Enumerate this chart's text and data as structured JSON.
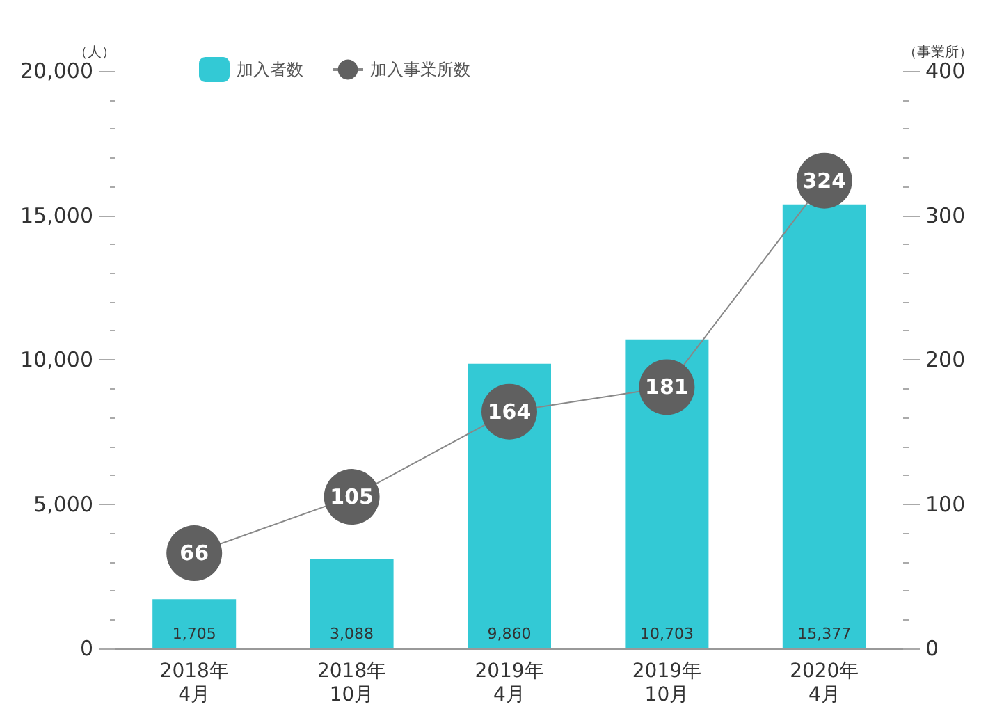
{
  "chart_data": {
    "type": "bar",
    "categories": [
      "2018年\n4月",
      "2018年\n10月",
      "2019年\n4月",
      "2019年\n10月",
      "2020年\n4月"
    ],
    "series": [
      {
        "name": "加入者数",
        "color": "#33c9d5",
        "values": [
          1705,
          3088,
          9860,
          10703,
          15377
        ],
        "value_labels": [
          "1,705",
          "3,088",
          "9,860",
          "10,703",
          "15,377"
        ]
      },
      {
        "name": "加入事業所数",
        "type": "line",
        "axis": "y2",
        "color": "#606060",
        "values": [
          66,
          105,
          164,
          181,
          324
        ],
        "value_labels": [
          "66",
          "105",
          "164",
          "181",
          "324"
        ]
      }
    ],
    "ylabel": "（人）",
    "y2label": "（事業所）",
    "ylim": [
      0,
      20000
    ],
    "yticks": [
      0,
      {
        "value": 5000,
        "label": "5,000"
      },
      {
        "value": 10000,
        "label": "10,000"
      },
      {
        "value": 15000,
        "label": "15,000"
      },
      {
        "value": 20000,
        "label": "20,000"
      }
    ],
    "y2lim": [
      0,
      400
    ],
    "y2ticks": [
      0,
      100,
      200,
      300,
      400
    ],
    "legend": "top",
    "marker": "circle"
  }
}
